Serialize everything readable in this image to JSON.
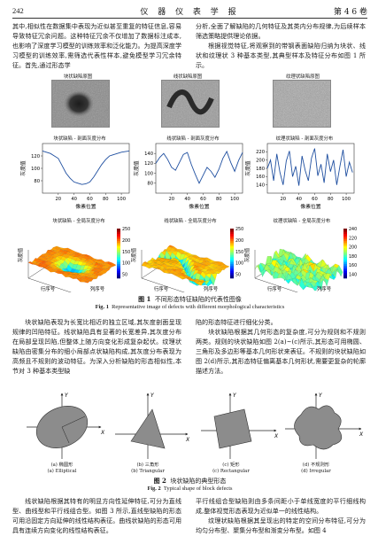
{
  "header": {
    "page_number": "242",
    "journal_title": "仪 器 仪 表 学 报",
    "volume": "第 4 6 卷"
  },
  "paragraphs": {
    "p1": "其中,相似性在数据集中表现为近似甚至重复的特征信息,容易导致特征冗余问题。这种特征冗余不仅增加了数据标注成本,也影响了深度学习模型的训练效率和泛化能力。为提高深度学习模型的训练效率,需筛选代表性样本,避免模型学习冗余特征。首先,通过形态学",
    "p2": "分析,全面了解缺陷的几何特征及其类内分布规律,为后续样本筛选策略提供理论依据。",
    "p3": "根据视觉特征,将观察到的带钢表面缺陷归纳为块状、线状和纹理状 3 种基本类型,其典型样本及特征分布如图 1 所示。",
    "p4": "块状缺陷表现为长宽比相近的独立区域,其灰度剖面呈现规律的凹陷特征。线状缺陷具有显著的长宽差异,其灰度分布在局部呈现凹陷,但整体上随方向变化形成复杂起伏。纹理状缺陷由密集分布的细小局部点状缺陷构成,其灰度分布表现为高频且不规则的波动特征。为深入分析缺陷的形态相似性,本节对 3 种基本类型缺",
    "p5": "陷的形态特征进行细化分类。",
    "p6": "块状缺陷根据其几何形态的复杂度,可分为规则和不规则两类。规则的块状缺陷如图 2(a)~(c)所示,其形态可用椭圆、三角形及多边形等基本几何形状来表征。不规则的块状缺陷如图 2(d)所示,其形态特征偏离基本几何形状,需要更复杂的轮廓描述方法。",
    "p7": "线状缺陷根据其特有的明显方向性延伸特征,可分为直线型、曲线型和平行线组合型。如图 3 所示,直线型缺陷的形态可用沿固定方向延伸的线性结构表征。曲线状缺陷的形态可用具有连续方向变化的线性结构表征。",
    "p8": "平行线组合型缺陷则由多条间距小于单线宽度的平行细线构成,整体视觉形态表现为近似单一的线性结构。",
    "p9": "纹理状缺陷根据其呈现出的特定的空间分布特征,可分为均匀分布型、聚集分布型和渐变分布型。如图 4"
  },
  "figure1": {
    "titles_row1": [
      "块状缺陷原图",
      "线状缺陷原图",
      "纹理状缺陷原图"
    ],
    "titles_row2": [
      "块状缺陷 - 剖面灰度分布",
      "线状缺陷 - 剖面灰度分布",
      "纹理状缺陷 - 剖面灰度分布"
    ],
    "titles_row3": [
      "块状缺陷 - 全局灰度分布",
      "线状缺陷 - 全局灰度分布",
      "纹理状缺陷 - 全局灰度分布"
    ],
    "ylabel": "灰度值",
    "xlabel": "像素位置",
    "xlabel_3d_left": "行序号",
    "xlabel_3d_right": "列序号",
    "caption_cn_label": "图 1",
    "caption_cn": "不同形态特征缺陷的代表性图像",
    "caption_en_label": "Fig. 1",
    "caption_en": "Representative image of defects with different morphological characteristics",
    "colorbars": [
      {
        "ticks": [
          "250",
          "200",
          "150",
          "100",
          "50"
        ]
      },
      {
        "ticks": [
          "250",
          "200",
          "150",
          "100",
          "50"
        ]
      },
      {
        "ticks": [
          "240",
          "220",
          "200",
          "180",
          "160",
          "140"
        ]
      }
    ]
  },
  "chart_data": [
    {
      "type": "line",
      "title": "块状缺陷 - 剖面灰度分布",
      "xlabel": "像素位置",
      "ylabel": "灰度值",
      "xlim": [
        0,
        110
      ],
      "ylim": [
        60,
        140
      ],
      "xticks": [
        20,
        40,
        60,
        80,
        100
      ],
      "yticks": [
        80,
        100,
        120
      ],
      "x": [
        0,
        5,
        10,
        15,
        20,
        25,
        30,
        35,
        40,
        45,
        50,
        55,
        60,
        65,
        70,
        75,
        80,
        85,
        90,
        95,
        100,
        105,
        110
      ],
      "values": [
        128,
        126,
        124,
        120,
        116,
        104,
        92,
        84,
        78,
        76,
        74,
        75,
        78,
        86,
        96,
        106,
        114,
        120,
        122,
        124,
        126,
        127,
        128
      ]
    },
    {
      "type": "line",
      "title": "线状缺陷 - 剖面灰度分布",
      "xlabel": "像素位置",
      "ylabel": "灰度值",
      "xlim": [
        0,
        110
      ],
      "ylim": [
        60,
        160
      ],
      "xticks": [
        20,
        40,
        60,
        80,
        100
      ],
      "yticks": [
        80,
        100,
        120,
        140
      ],
      "x": [
        0,
        5,
        10,
        15,
        20,
        25,
        30,
        35,
        40,
        45,
        50,
        55,
        60,
        65,
        70,
        75,
        80,
        85,
        90,
        95,
        100,
        105,
        110
      ],
      "values": [
        120,
        132,
        140,
        128,
        112,
        106,
        122,
        138,
        142,
        118,
        98,
        80,
        96,
        112,
        104,
        92,
        108,
        130,
        144,
        122,
        104,
        126,
        142
      ]
    },
    {
      "type": "line",
      "title": "纹理状缺陷 - 剖面灰度分布",
      "xlabel": "像素位置",
      "ylabel": "灰度值",
      "xlim": [
        0,
        110
      ],
      "ylim": [
        120,
        240
      ],
      "xticks": [
        20,
        40,
        60,
        80,
        100
      ],
      "yticks": [
        140,
        160,
        180,
        200,
        220
      ],
      "x": [
        0,
        4,
        8,
        12,
        16,
        20,
        24,
        28,
        32,
        36,
        40,
        44,
        48,
        52,
        56,
        60,
        64,
        68,
        72,
        76,
        80,
        84,
        88,
        92,
        96,
        100,
        104,
        108
      ],
      "values": [
        180,
        200,
        150,
        215,
        170,
        140,
        198,
        222,
        160,
        185,
        138,
        210,
        175,
        150,
        205,
        228,
        162,
        190,
        145,
        215,
        172,
        200,
        140,
        185,
        225,
        160,
        195,
        170
      ]
    }
  ],
  "figure2": {
    "labels": [
      {
        "cn": "(a)  椭圆形",
        "en": "(a)  Elliptical"
      },
      {
        "cn": "(b)  三角形",
        "en": "(b)  Triangular"
      },
      {
        "cn": "(c)  矩形",
        "en": "(c)  Rectangular"
      },
      {
        "cn": "(d)  不规则形",
        "en": "(d)  Irregular"
      }
    ],
    "axis_x": "X",
    "axis_y": "Y",
    "caption_cn_label": "图 2",
    "caption_cn": "块状缺陷的典型形态",
    "caption_en_label": "Fig. 2",
    "caption_en": "Typical shape of block defects"
  },
  "colors": {
    "line": "#1f4fa0",
    "shape_fill": "#8c8c8c",
    "text": "#1a1a1a"
  }
}
